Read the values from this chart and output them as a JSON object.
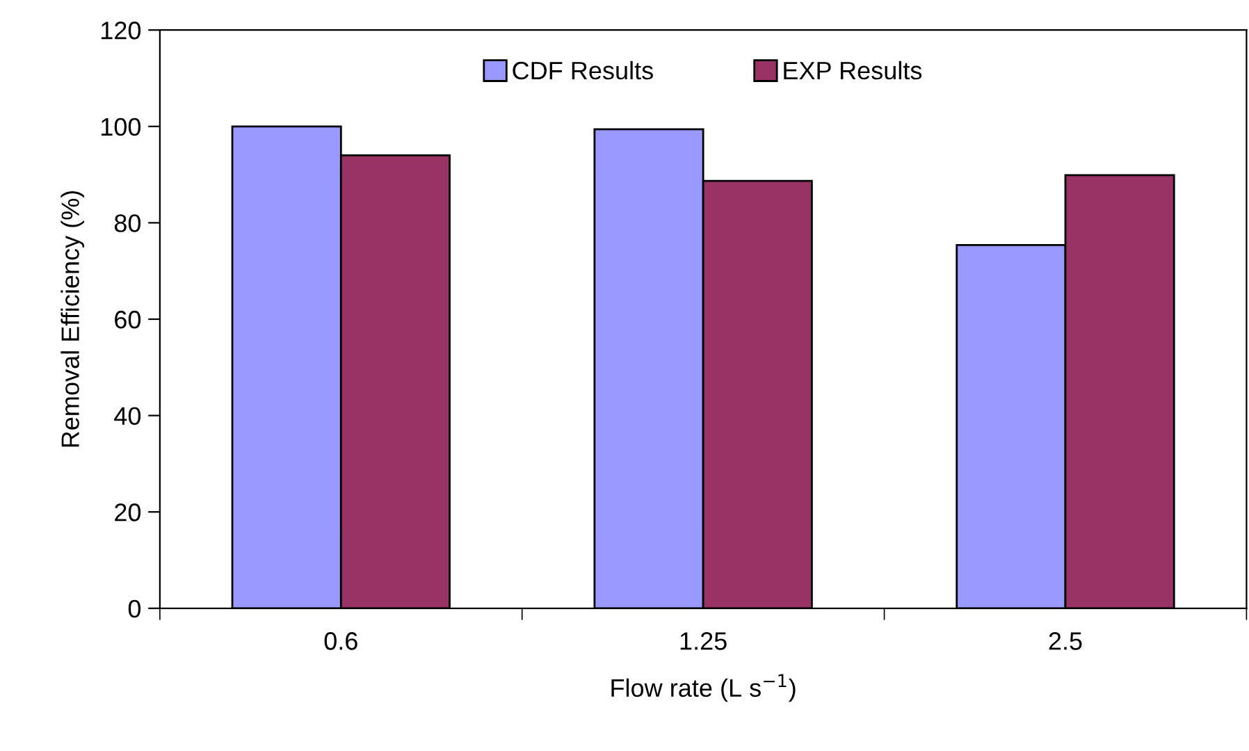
{
  "chart_data": {
    "type": "bar",
    "xlabel": "Flow rate (L s$^{−1}$)",
    "ylabel": "Removal Efficiency (%)",
    "categories": [
      "0.6",
      "1.25",
      "2.5"
    ],
    "series": [
      {
        "name": "CDF Results",
        "color": "#9999ff",
        "values": [
          100,
          99.4,
          75.4
        ]
      },
      {
        "name": "EXP Results",
        "color": "#993366",
        "values": [
          94,
          88.7,
          89.9
        ]
      }
    ],
    "ylim": [
      0,
      120
    ],
    "yticks": [
      0,
      20,
      40,
      60,
      80,
      100,
      120
    ],
    "grid": false,
    "legend": "top"
  }
}
